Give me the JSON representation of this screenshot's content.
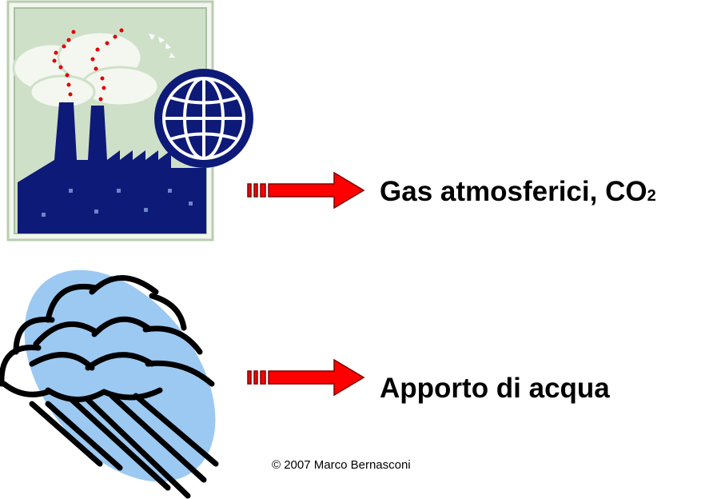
{
  "items": [
    {
      "label": "Gas atmosferici, CO",
      "subscript": "2"
    },
    {
      "label": "Apporto di acqua"
    }
  ],
  "footer": "© 2007  Marco Bernasconi"
}
